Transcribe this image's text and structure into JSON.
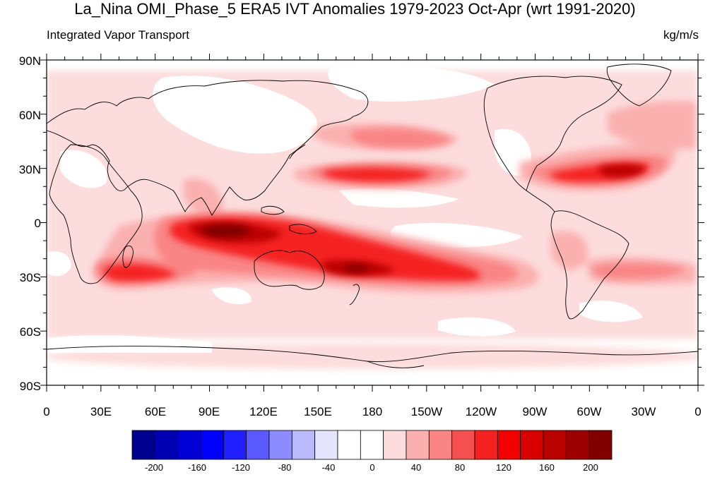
{
  "title": "La_Nina OMI_Phase_5 ERA5 IVT Anomalies 1979-2023 Oct-Apr (wrt 1991-2020)",
  "left_string": "Integrated Vapor Transport",
  "right_string": "kg/m/s",
  "lat_labels": [
    "90N",
    "60N",
    "30N",
    "0",
    "30S",
    "60S",
    "90S"
  ],
  "lon_labels": [
    "0",
    "30E",
    "60E",
    "90E",
    "120E",
    "150E",
    "180",
    "150W",
    "120W",
    "90W",
    "60W",
    "30W",
    "0"
  ],
  "colorbar": {
    "colors": [
      "#00008f",
      "#0000b3",
      "#0000d6",
      "#0000ff",
      "#1f1fff",
      "#5a5aff",
      "#8c8cff",
      "#b9b9fb",
      "#e4e4fc",
      "#ffffff",
      "#ffffff",
      "#fcdcdc",
      "#fbb0b0",
      "#f98585",
      "#f55050",
      "#f52020",
      "#f20000",
      "#d90000",
      "#bb0000",
      "#9c0000",
      "#800000"
    ],
    "labels": [
      "-200",
      "-160",
      "-120",
      "-80",
      "-40",
      "0",
      "40",
      "80",
      "120",
      "160",
      "200"
    ]
  }
}
